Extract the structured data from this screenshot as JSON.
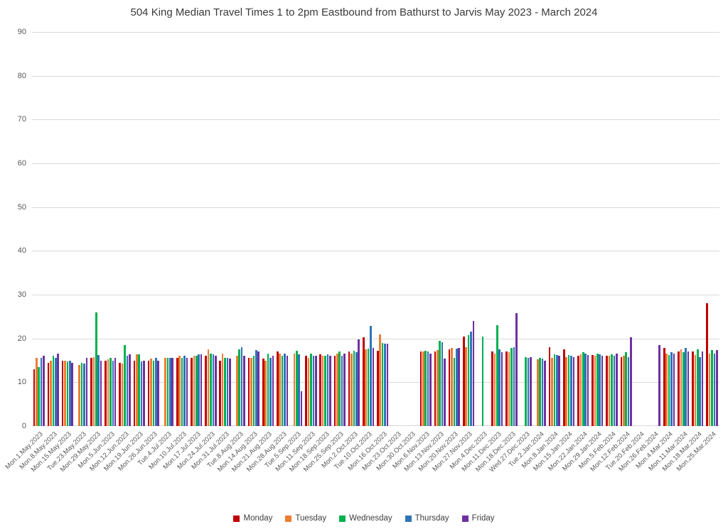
{
  "chart_data": {
    "type": "bar",
    "title": "504 King Median Travel Times 1 to 2pm Eastbound from Bathurst to Jarvis May 2023 - March 2024",
    "xlabel": "",
    "ylabel": "",
    "ylim": [
      0,
      90
    ],
    "yticks": [
      0,
      10,
      20,
      30,
      40,
      50,
      60,
      70,
      80,
      90
    ],
    "grid": true,
    "legend_position": "bottom",
    "gridline_color": "#d9d9d9",
    "tick_color": "#595959",
    "title_color": "#3a3a3a",
    "categories": [
      "Mon.1.May.2023",
      "Mon.8.May.2023",
      "Mon.15.May.2023",
      "Tue.23.May.2023",
      "Mon.29.May.2023",
      "Mon.5.Jun.2023",
      "Mon.12.Jun.2023",
      "Mon.19.Jun.2023",
      "Mon.26.Jun.2023",
      "Tue.4.Jul.2023",
      "Mon.10.Jul.2023",
      "Mon.17.Jul.2023",
      "Mon.24.Jul.2023",
      "Mon.31.Jul.2023",
      "Tue.8.Aug.2023",
      "Mon.14.Aug.2023",
      "Mon.21.Aug.2023",
      "Mon.28.Aug.2023",
      "Tue.5.Sep.2023",
      "Mon.11.Sep.2023",
      "Mon.18.Sep.2023",
      "Mon.25.Sep.2023",
      "Mon.2.Oct.2023",
      "Tue.10.Oct.2023",
      "Mon.16.Oct.2023",
      "Mon.23.Oct.2023",
      "Mon.30.Oct.2023",
      "Mon.6.Nov.2023",
      "Mon.13.Nov.2023",
      "Mon.20.Nov.2023",
      "Mon.27.Nov.2023",
      "Mon.4.Dec.2023",
      "Mon.11.Dec.2023",
      "Mon.18.Dec.2023",
      "Wed.27.Dec.2023",
      "Tue.2.Jan.2024",
      "Mon.8.Jan.2024",
      "Mon.15.Jan.2024",
      "Mon.22.Jan.2024",
      "Mon.29.Jan.2024",
      "Mon.5.Feb.2024",
      "Mon.12.Feb.2024",
      "Tue.20.Feb.2024",
      "Mon.26.Feb.2024",
      "Mon.4.Mar.2024",
      "Mon.11.Mar.2024",
      "Mon.18.Mar.2024",
      "Mon.25.Mar.2024"
    ],
    "series": [
      {
        "name": "Monday",
        "color": "#c00000",
        "values": [
          13,
          14.5,
          15,
          null,
          15.5,
          15,
          14.5,
          15,
          15,
          null,
          15.5,
          15.5,
          16,
          15,
          null,
          15.5,
          15.4,
          17,
          null,
          16,
          16.4,
          16,
          17,
          20.3,
          17.2,
          null,
          null,
          17,
          17,
          17.5,
          20.5,
          null,
          17,
          17,
          null,
          null,
          18,
          17.5,
          16,
          16.2,
          16,
          15.8,
          null,
          null,
          17.8,
          17,
          17,
          28
        ]
      },
      {
        "name": "Tuesday",
        "color": "#ed7d31",
        "values": [
          15.5,
          15,
          15,
          14,
          15.8,
          15.2,
          14.3,
          16.4,
          15.4,
          15.5,
          16,
          16,
          17.5,
          16.5,
          16,
          15.6,
          15,
          16.6,
          16.5,
          15.5,
          16,
          16.5,
          16.5,
          17.5,
          21,
          null,
          null,
          17,
          17.4,
          17.8,
          18,
          null,
          16.5,
          16.8,
          null,
          15.2,
          15.5,
          15.8,
          16.3,
          16,
          16,
          16,
          null,
          null,
          16.5,
          17.5,
          16.2,
          16.5
        ]
      },
      {
        "name": "Wednesday",
        "color": "#00b050",
        "values": [
          13.5,
          16,
          14.8,
          14.5,
          26,
          15.5,
          18.5,
          16.4,
          15,
          15.6,
          15.5,
          16,
          16.6,
          15.5,
          17.5,
          16,
          16.5,
          16,
          17.2,
          16.5,
          16,
          17,
          17.2,
          17.6,
          19,
          null,
          null,
          17.2,
          19.5,
          15.5,
          20.8,
          20.5,
          23,
          17.8,
          15.8,
          15.6,
          16.4,
          16.2,
          16.8,
          16.6,
          16.3,
          16.8,
          null,
          null,
          16.2,
          16.8,
          17.5,
          17.3
        ]
      },
      {
        "name": "Thursday",
        "color": "#2e75b6",
        "values": [
          15.5,
          15.5,
          15,
          14.2,
          16.2,
          15,
          16,
          14.8,
          15.5,
          15.5,
          16,
          16.4,
          16.4,
          15.6,
          18,
          17.4,
          15.5,
          16.5,
          16.4,
          16,
          16.4,
          16,
          16.8,
          22.8,
          18.8,
          null,
          null,
          17,
          19.2,
          17.6,
          21.6,
          null,
          17.5,
          18,
          15.5,
          15.4,
          16.2,
          16,
          16.5,
          16.4,
          16,
          15.8,
          null,
          null,
          16.8,
          17.8,
          15.8,
          16.5
        ]
      },
      {
        "name": "Friday",
        "color": "#7030a0",
        "values": [
          16,
          16.5,
          14.5,
          15.5,
          15,
          15.5,
          16.3,
          15,
          15,
          15.6,
          15.6,
          16.4,
          16,
          15.4,
          16,
          17,
          16,
          16,
          8,
          16,
          16,
          16.5,
          19.8,
          17.8,
          18.8,
          null,
          null,
          16.5,
          15.4,
          17.8,
          24,
          null,
          16.8,
          25.8,
          15.8,
          15,
          16,
          15.8,
          16.2,
          16,
          16.5,
          20.3,
          null,
          18.5,
          16.5,
          17,
          17,
          17.3
        ]
      }
    ]
  }
}
